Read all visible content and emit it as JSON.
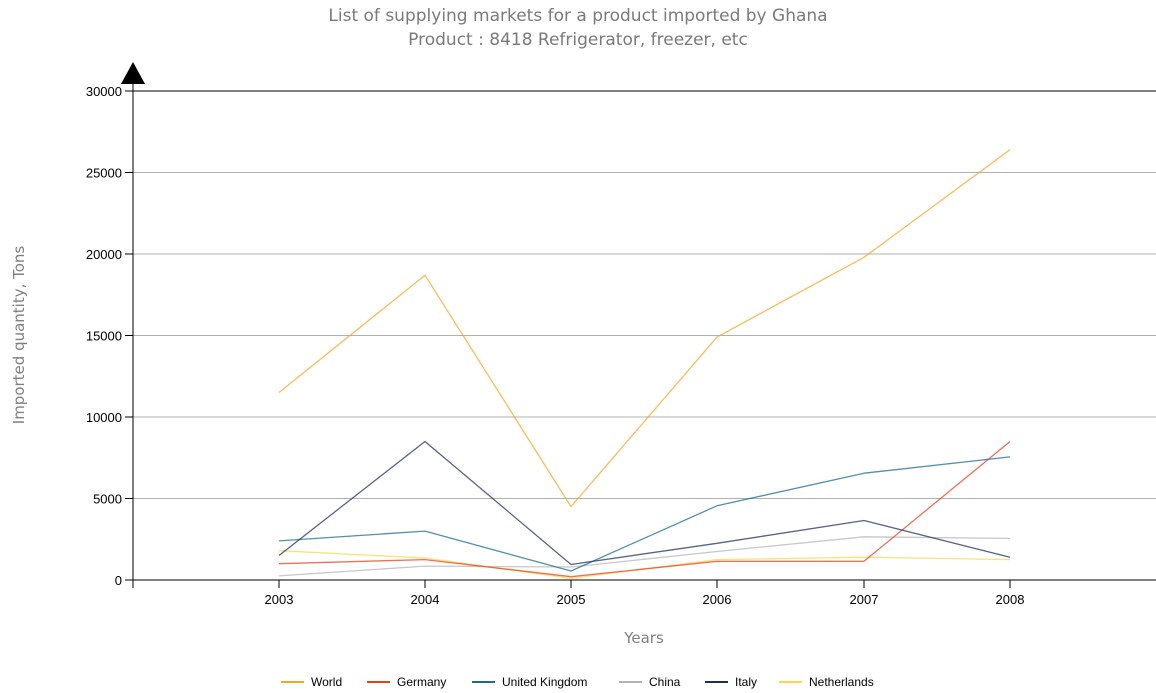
{
  "chart_data": {
    "type": "line",
    "title": "List of supplying markets for a product imported by Ghana",
    "subtitle": "Product : 8418 Refrigerator, freezer, etc",
    "xlabel": "Years",
    "ylabel": "Imported quantity, Tons",
    "categories": [
      "2003",
      "2004",
      "2005",
      "2006",
      "2007",
      "2008"
    ],
    "ylim": [
      0,
      30000
    ],
    "yticks": [
      0,
      5000,
      10000,
      15000,
      20000,
      25000,
      30000
    ],
    "grid": true,
    "legend_position": "bottom",
    "series": [
      {
        "name": "World",
        "color": "#f5a623",
        "values": [
          11500,
          18700,
          4500,
          14900,
          19800,
          26400
        ]
      },
      {
        "name": "Germany",
        "color": "#e8401c",
        "values": [
          1000,
          1250,
          200,
          1150,
          1150,
          8500
        ]
      },
      {
        "name": "United Kingdom",
        "color": "#1a6a92",
        "values": [
          2400,
          3000,
          550,
          4550,
          6550,
          7550
        ]
      },
      {
        "name": "China",
        "color": "#b4b4b4",
        "values": [
          250,
          850,
          800,
          1750,
          2650,
          2550
        ]
      },
      {
        "name": "Italy",
        "color": "#1c2f5c",
        "values": [
          1500,
          8500,
          950,
          2250,
          3650,
          1400
        ]
      },
      {
        "name": "Netherlands",
        "color": "#f7d84a",
        "values": [
          1800,
          1350,
          100,
          1250,
          1400,
          1250
        ]
      }
    ]
  }
}
